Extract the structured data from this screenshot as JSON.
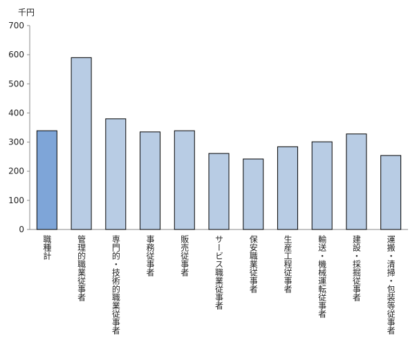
{
  "chart_data": {
    "type": "bar",
    "unit": "千円",
    "ylim": [
      0,
      700
    ],
    "ytick_step": 100,
    "grid": false,
    "categories": [
      "職種計",
      "管理的職業従事者",
      "専門的・技術的職業従事者",
      "事務従事者",
      "販売従事者",
      "サービス職業従事者",
      "保安職業従事者",
      "生産工程従事者",
      "輸送・機械運転従事者",
      "建設・採掘従事者",
      "運搬・清掃・包装等従事者"
    ],
    "values": [
      339,
      590,
      380,
      335,
      339,
      261,
      242,
      284,
      301,
      328,
      254
    ],
    "highlight_index": 0,
    "colors": {
      "highlight": "#7ea5d8",
      "bar": "#b8cce4",
      "bar_edge": "#000000",
      "axis": "#888888"
    }
  }
}
